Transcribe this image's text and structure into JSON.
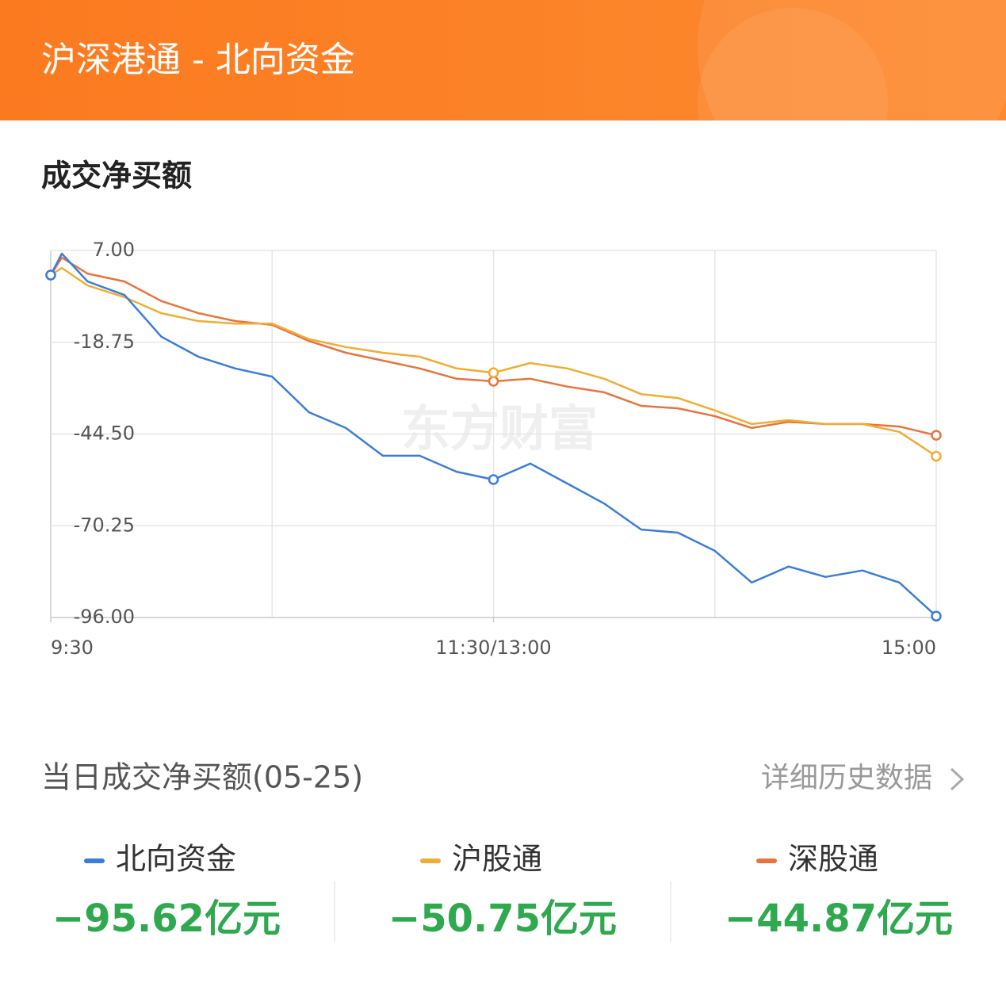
{
  "header": {
    "title": "沪深港通 - 北向资金"
  },
  "section_title": "成交净买额",
  "watermark": "东方财富",
  "chart_data": {
    "type": "line",
    "x": [
      0,
      3,
      10,
      20,
      30,
      40,
      50,
      60,
      70,
      80,
      90,
      100,
      110,
      120,
      130,
      140,
      150,
      160,
      170,
      180,
      190,
      200,
      210,
      220,
      230,
      240
    ],
    "xlim": [
      0,
      240
    ],
    "xticks": [
      {
        "value": 0,
        "label": "9:30"
      },
      {
        "value": 120,
        "label": "11:30/13:00"
      },
      {
        "value": 240,
        "label": "15:00"
      }
    ],
    "xgrid": [
      0,
      60,
      120,
      180,
      240
    ],
    "ylim": [
      -96,
      7
    ],
    "yticks": [
      {
        "value": 7,
        "label": "7.00"
      },
      -18.75,
      {
        "value": -44.5,
        "label": "-44.50"
      },
      -70.25,
      {
        "value": -96,
        "label": "-96.00"
      }
    ],
    "grid": true,
    "markers_at": [
      0,
      13,
      25
    ],
    "series": [
      {
        "name": "北向资金",
        "color": "#3b7dd8",
        "values": [
          0.1,
          6.1,
          -1.7,
          -5.5,
          -17.2,
          -22.8,
          -26.1,
          -28.4,
          -38.4,
          -42.8,
          -50.6,
          -50.6,
          -55.1,
          -57.3,
          -52.8,
          -58.4,
          -64,
          -71.3,
          -72.2,
          -77.3,
          -86.2,
          -81.7,
          -84.6,
          -82.8,
          -86.2,
          -95.62
        ],
        "total": -95.62,
        "total_label": "−95.62亿元"
      },
      {
        "name": "沪股通",
        "color": "#f0ad35",
        "values": [
          0.1,
          2.1,
          -2.8,
          -6.1,
          -10.6,
          -12.8,
          -13.5,
          -13.5,
          -17.9,
          -20.1,
          -21.7,
          -22.8,
          -26.1,
          -27.3,
          -24.6,
          -26.1,
          -29,
          -33.3,
          -34.4,
          -37.9,
          -41.7,
          -40.6,
          -41.7,
          -41.7,
          -43.9,
          -50.75
        ],
        "total": -50.75,
        "total_label": "−50.75亿元"
      },
      {
        "name": "深股通",
        "color": "#e8743b",
        "values": [
          0.1,
          5,
          0.5,
          -1.7,
          -7.2,
          -10.6,
          -12.8,
          -13.9,
          -18.4,
          -21.7,
          -23.9,
          -26.1,
          -29,
          -29.7,
          -29,
          -31.2,
          -32.8,
          -36.6,
          -37.3,
          -39.5,
          -42.8,
          -41.1,
          -41.7,
          -41.7,
          -42.4,
          -44.87
        ],
        "total": -44.87,
        "total_label": "−44.87亿元"
      }
    ]
  },
  "summary": {
    "title": "当日成交净买额(05-25)",
    "link": "详细历史数据"
  }
}
